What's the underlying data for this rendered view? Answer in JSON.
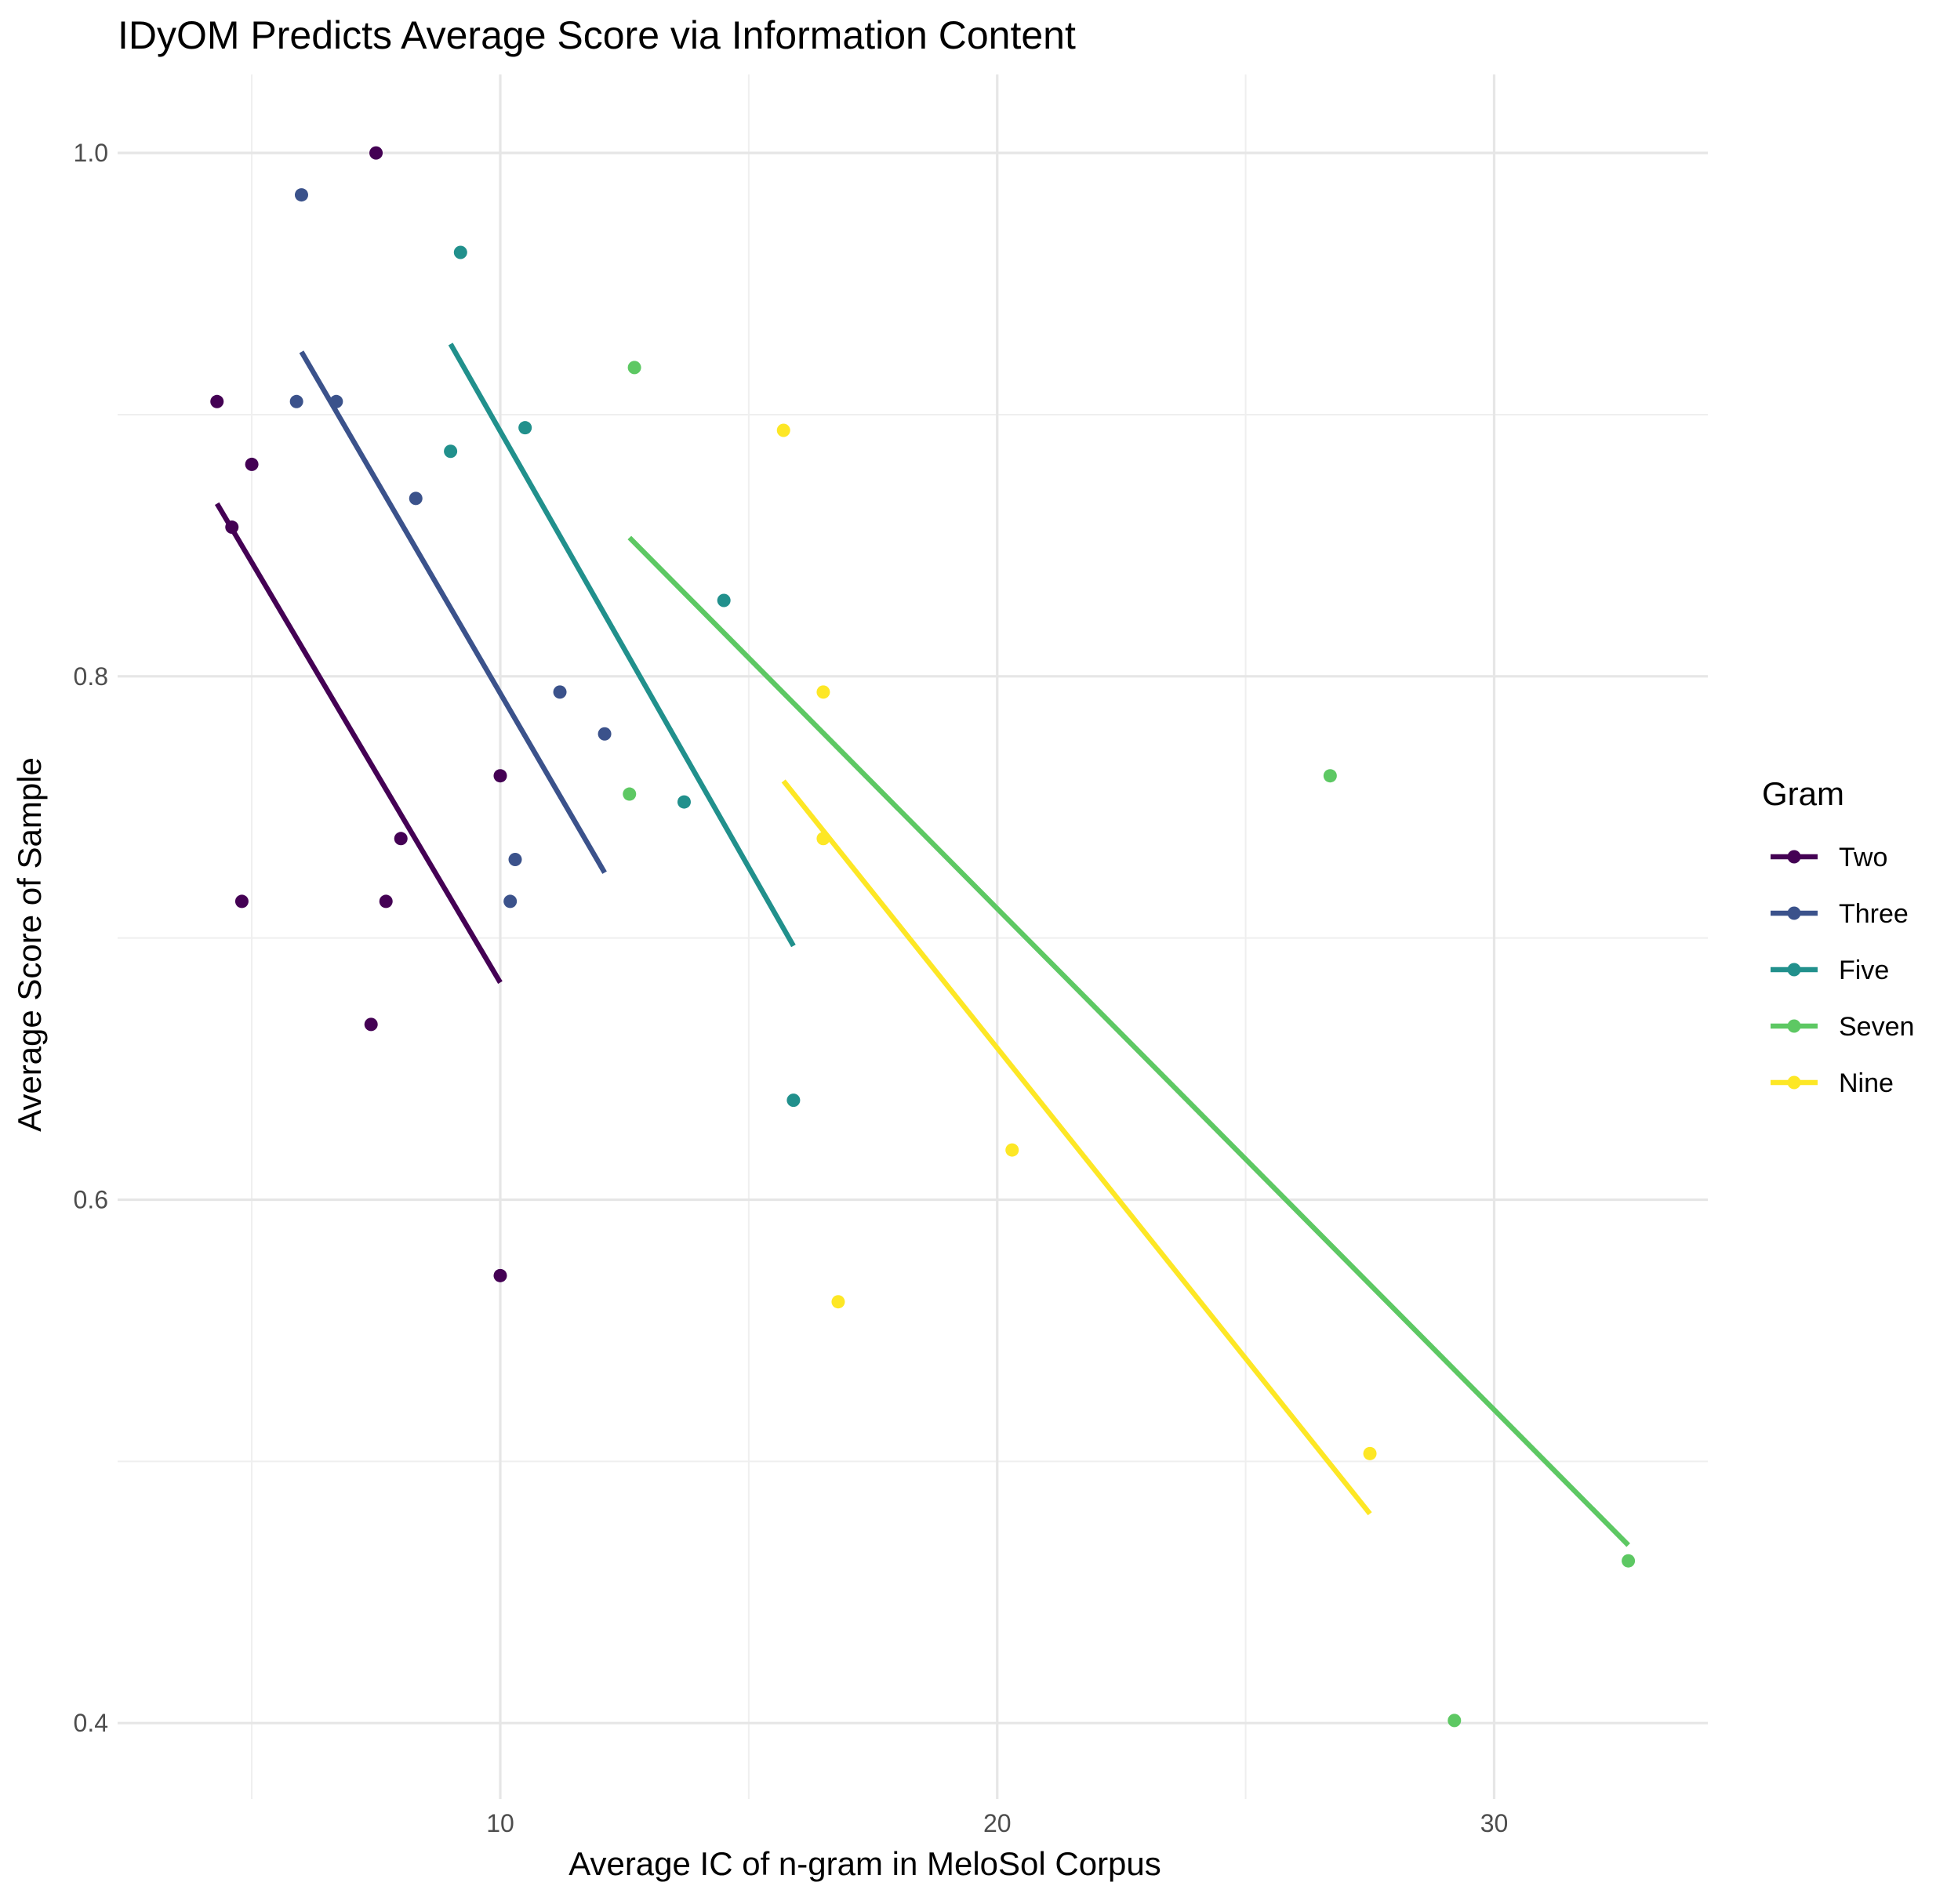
{
  "chart_data": {
    "type": "scatter",
    "title": "IDyOM Predicts Average Score via Information Content",
    "xlabel": "Average IC of n-gram in MeloSol Corpus",
    "ylabel": "Average Score of Sample",
    "xlim": [
      2.3,
      34.3
    ],
    "ylim": [
      0.371,
      1.03
    ],
    "x_major_ticks": [
      10,
      20,
      30
    ],
    "x_minor_ticks": [
      5,
      15,
      25
    ],
    "y_major_ticks": [
      0.4,
      0.6,
      0.8,
      1.0
    ],
    "y_minor_ticks": [
      0.5,
      0.7,
      0.9
    ],
    "x_tick_labels": [
      "10",
      "20",
      "30"
    ],
    "y_tick_labels": [
      "0.4",
      "0.6",
      "0.8",
      "1.0"
    ],
    "grid": true,
    "legend": {
      "title": "Gram",
      "position": "right"
    },
    "series": [
      {
        "name": "Two",
        "color": "#440154",
        "points": [
          [
            7.5,
            1.0
          ],
          [
            4.3,
            0.905
          ],
          [
            5.0,
            0.881
          ],
          [
            4.6,
            0.857
          ],
          [
            8.0,
            0.738
          ],
          [
            4.8,
            0.714
          ],
          [
            7.7,
            0.714
          ],
          [
            10.0,
            0.762
          ],
          [
            7.4,
            0.667
          ],
          [
            10.0,
            0.571
          ]
        ],
        "fit": [
          [
            4.3,
            0.866
          ],
          [
            10.0,
            0.683
          ]
        ]
      },
      {
        "name": "Three",
        "color": "#3B528B",
        "points": [
          [
            6.0,
            0.984
          ],
          [
            5.9,
            0.905
          ],
          [
            6.7,
            0.905
          ],
          [
            8.3,
            0.868
          ],
          [
            11.2,
            0.794
          ],
          [
            12.1,
            0.778
          ],
          [
            10.3,
            0.73
          ],
          [
            10.2,
            0.714
          ]
        ],
        "fit": [
          [
            6.0,
            0.924
          ],
          [
            12.1,
            0.725
          ]
        ]
      },
      {
        "name": "Five",
        "color": "#21908C",
        "points": [
          [
            9.2,
            0.962
          ],
          [
            10.5,
            0.895
          ],
          [
            9.0,
            0.886
          ],
          [
            14.5,
            0.829
          ],
          [
            13.7,
            0.752
          ],
          [
            15.9,
            0.638
          ]
        ],
        "fit": [
          [
            9.0,
            0.927
          ],
          [
            15.9,
            0.697
          ]
        ]
      },
      {
        "name": "Seven",
        "color": "#5DC863",
        "points": [
          [
            12.7,
            0.918
          ],
          [
            12.6,
            0.755
          ],
          [
            26.7,
            0.762
          ],
          [
            32.7,
            0.462
          ],
          [
            29.2,
            0.401
          ]
        ],
        "fit": [
          [
            12.6,
            0.853
          ],
          [
            32.7,
            0.468
          ]
        ]
      },
      {
        "name": "Nine",
        "color": "#FDE725",
        "points": [
          [
            15.7,
            0.894
          ],
          [
            16.5,
            0.794
          ],
          [
            16.5,
            0.738
          ],
          [
            20.3,
            0.619
          ],
          [
            16.8,
            0.561
          ],
          [
            27.5,
            0.503
          ]
        ],
        "fit": [
          [
            15.7,
            0.76
          ],
          [
            27.5,
            0.48
          ]
        ]
      }
    ]
  }
}
